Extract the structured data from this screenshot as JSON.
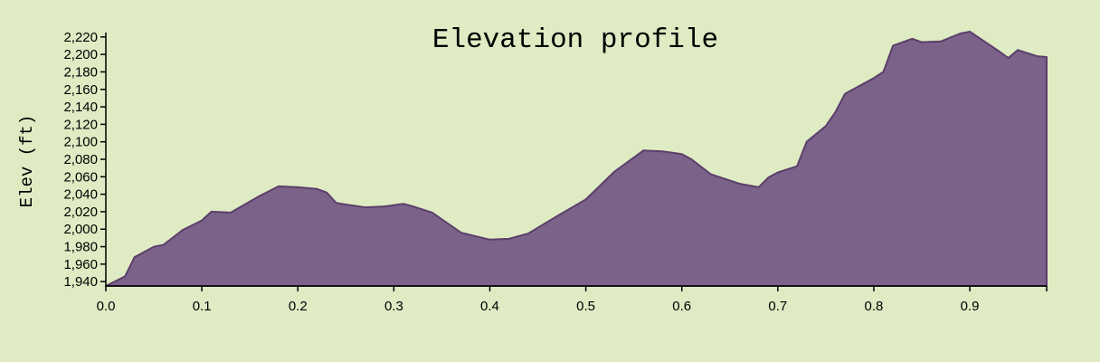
{
  "chart_data": {
    "type": "area",
    "title": "Elevation profile",
    "xlabel": "",
    "ylabel": "Elev (ft)",
    "xlim": [
      0,
      0.98
    ],
    "ylim": [
      1935,
      2225
    ],
    "x_ticks": [
      0.0,
      0.1,
      0.2,
      0.3,
      0.4,
      0.5,
      0.6,
      0.7,
      0.8,
      0.9
    ],
    "x_tick_labels": [
      "0.0",
      "0.1",
      "0.2",
      "0.3",
      "0.4",
      "0.5",
      "0.6",
      "0.7",
      "0.8",
      "0.9"
    ],
    "y_ticks": [
      1940,
      1960,
      1980,
      2000,
      2020,
      2040,
      2060,
      2080,
      2100,
      2120,
      2140,
      2160,
      2180,
      2200,
      2220
    ],
    "y_tick_labels": [
      "1,940",
      "1,960",
      "1,980",
      "2,000",
      "2,020",
      "2,040",
      "2,060",
      "2,080",
      "2,100",
      "2,120",
      "2,140",
      "2,160",
      "2,180",
      "2,200",
      "2,220"
    ],
    "grid": false,
    "colors": {
      "fill": "#7b6289",
      "stroke": "#5b3f6b",
      "background": "#dfebc3"
    },
    "x": [
      0.0,
      0.02,
      0.03,
      0.05,
      0.06,
      0.08,
      0.1,
      0.11,
      0.13,
      0.16,
      0.18,
      0.2,
      0.22,
      0.23,
      0.24,
      0.27,
      0.29,
      0.31,
      0.32,
      0.34,
      0.37,
      0.4,
      0.42,
      0.44,
      0.47,
      0.5,
      0.53,
      0.56,
      0.58,
      0.6,
      0.61,
      0.63,
      0.66,
      0.68,
      0.69,
      0.7,
      0.72,
      0.73,
      0.75,
      0.76,
      0.77,
      0.8,
      0.81,
      0.82,
      0.84,
      0.85,
      0.87,
      0.89,
      0.9,
      0.93,
      0.94,
      0.95,
      0.97,
      0.98
    ],
    "y": [
      1935,
      1946,
      1968,
      1980,
      1982,
      1999,
      2010,
      2020,
      2019,
      2038,
      2049,
      2048,
      2046,
      2042,
      2030,
      2025,
      2026,
      2029,
      2026,
      2019,
      1996,
      1988,
      1989,
      1995,
      2015,
      2034,
      2066,
      2090,
      2089,
      2086,
      2080,
      2063,
      2052,
      2048,
      2059,
      2065,
      2072,
      2100,
      2118,
      2134,
      2155,
      2173,
      2180,
      2210,
      2218,
      2214,
      2215,
      2224,
      2226,
      2204,
      2196,
      2205,
      2198,
      2197
    ]
  }
}
